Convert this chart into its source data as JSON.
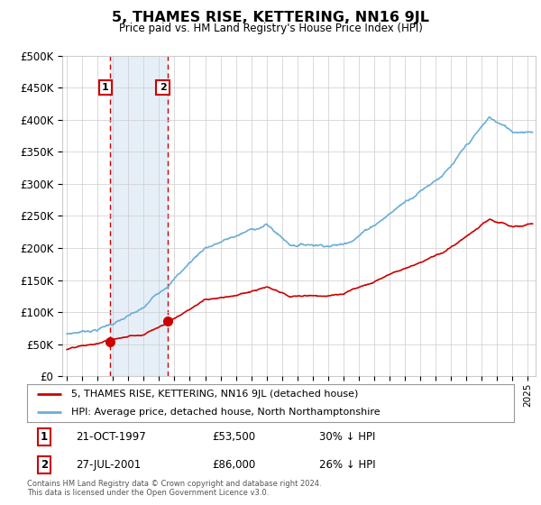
{
  "title": "5, THAMES RISE, KETTERING, NN16 9JL",
  "subtitle": "Price paid vs. HM Land Registry's House Price Index (HPI)",
  "ylabel_ticks": [
    "£0",
    "£50K",
    "£100K",
    "£150K",
    "£200K",
    "£250K",
    "£300K",
    "£350K",
    "£400K",
    "£450K",
    "£500K"
  ],
  "ytick_values": [
    0,
    50000,
    100000,
    150000,
    200000,
    250000,
    300000,
    350000,
    400000,
    450000,
    500000
  ],
  "xlim": [
    1994.7,
    2025.5
  ],
  "ylim": [
    0,
    500000
  ],
  "hpi_color": "#6baed6",
  "price_color": "#cc0000",
  "sale1_date": 1997.8,
  "sale1_price": 53500,
  "sale2_date": 2001.55,
  "sale2_price": 86000,
  "legend_entry1": "5, THAMES RISE, KETTERING, NN16 9JL (detached house)",
  "legend_entry2": "HPI: Average price, detached house, North Northamptonshire",
  "table_row1": [
    "1",
    "21-OCT-1997",
    "£53,500",
    "30% ↓ HPI"
  ],
  "table_row2": [
    "2",
    "27-JUL-2001",
    "£86,000",
    "26% ↓ HPI"
  ],
  "footnote": "Contains HM Land Registry data © Crown copyright and database right 2024.\nThis data is licensed under the Open Government Licence v3.0.",
  "background_color": "#ffffff",
  "grid_color": "#cccccc",
  "highlight_fill": "#dce9f5"
}
